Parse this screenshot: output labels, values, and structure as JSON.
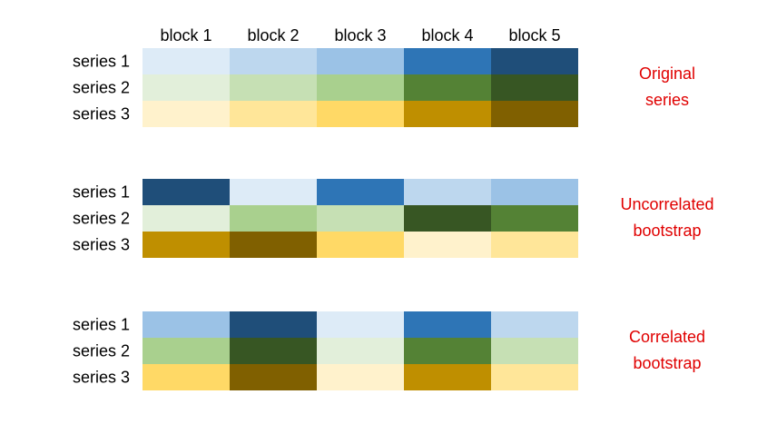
{
  "header": {
    "columns": [
      "block 1",
      "block 2",
      "block 3",
      "block 4",
      "block 5"
    ]
  },
  "panels": [
    {
      "label": [
        "Original",
        "series"
      ],
      "rows": [
        {
          "label": "series 1",
          "colors": [
            "#DDEBF7",
            "#BDD7EE",
            "#9BC2E6",
            "#2E75B6",
            "#1F4E79"
          ]
        },
        {
          "label": "series 2",
          "colors": [
            "#E2EFDA",
            "#C6E0B4",
            "#A9D08E",
            "#548235",
            "#375623"
          ]
        },
        {
          "label": "series 3",
          "colors": [
            "#FFF2CC",
            "#FFE699",
            "#FFD966",
            "#BF8F00",
            "#806000"
          ]
        }
      ]
    },
    {
      "label": [
        "Uncorrelated",
        "bootstrap"
      ],
      "rows": [
        {
          "label": "series 1",
          "colors": [
            "#1F4E79",
            "#DDEBF7",
            "#2E75B6",
            "#BDD7EE",
            "#9BC2E6"
          ]
        },
        {
          "label": "series 2",
          "colors": [
            "#E2EFDA",
            "#A9D08E",
            "#C6E0B4",
            "#375623",
            "#548235"
          ]
        },
        {
          "label": "series 3",
          "colors": [
            "#BF8F00",
            "#806000",
            "#FFD966",
            "#FFF2CC",
            "#FFE699"
          ]
        }
      ]
    },
    {
      "label": [
        "Correlated",
        "bootstrap"
      ],
      "rows": [
        {
          "label": "series 1",
          "colors": [
            "#9BC2E6",
            "#1F4E79",
            "#DDEBF7",
            "#2E75B6",
            "#BDD7EE"
          ]
        },
        {
          "label": "series 2",
          "colors": [
            "#A9D08E",
            "#375623",
            "#E2EFDA",
            "#548235",
            "#C6E0B4"
          ]
        },
        {
          "label": "series 3",
          "colors": [
            "#FFD966",
            "#806000",
            "#FFF2CC",
            "#BF8F00",
            "#FFE699"
          ]
        }
      ]
    }
  ]
}
